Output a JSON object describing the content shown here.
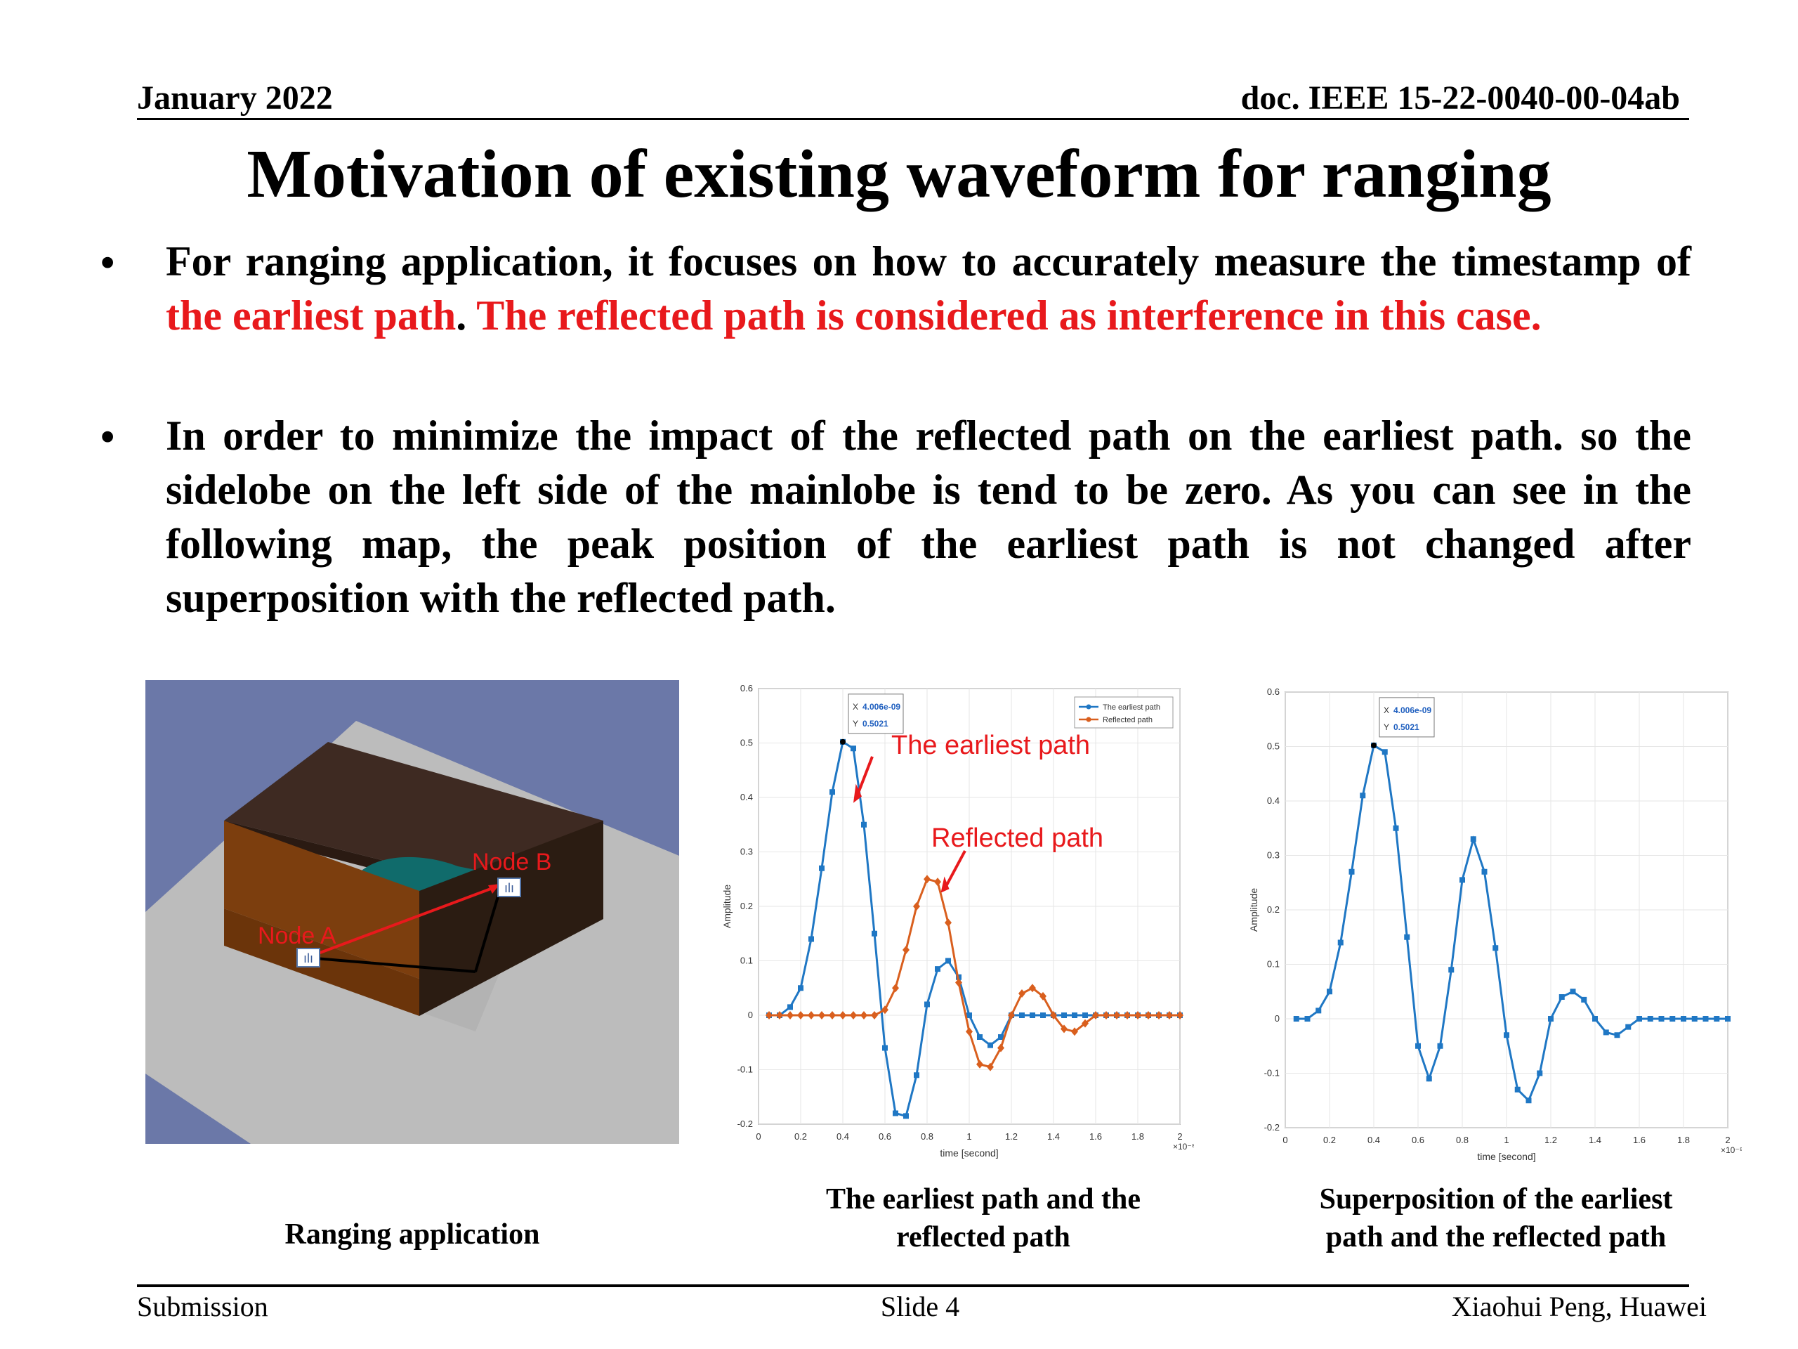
{
  "header": {
    "date": "January 2022",
    "doc": "doc. IEEE 15-22-0040-00-04ab"
  },
  "title": "Motivation of existing waveform for ranging",
  "bullets": {
    "b1_part1": "For ranging application, it focuses on how to accurately measure the timestamp of ",
    "b1_red1": "the earliest path",
    "b1_part2": ". ",
    "b1_red2": "The reflected path is considered as interference in this case.",
    "b2": "In order to minimize the impact of the reflected path on the earliest path. so the sidelobe on the left side of the mainlobe is tend to be zero. As you can see in the following map, the peak position of the earliest path is not changed after superposition with the reflected path.",
    "marker": "•"
  },
  "scene": {
    "node_a": "Node A",
    "node_b": "Node B"
  },
  "annotations": {
    "earliest": "The earliest path",
    "reflected": "Reflected path"
  },
  "colors": {
    "blue": "#1f77c4",
    "orange": "#d95f1e",
    "red": "#e8191c"
  },
  "chart_data": [
    {
      "type": "line",
      "xlabel": "time [second]",
      "ylabel": "Amplitude",
      "x_multiplier": "×10⁻⁸",
      "xlim": [
        0,
        2
      ],
      "ylim": [
        -0.2,
        0.6
      ],
      "xticks": [
        "0",
        "0.2",
        "0.4",
        "0.6",
        "0.8",
        "1",
        "1.2",
        "1.4",
        "1.6",
        "1.8",
        "2"
      ],
      "yticks": [
        "-0.2",
        "-0.1",
        "0",
        "0.1",
        "0.2",
        "0.3",
        "0.4",
        "0.5",
        "0.6"
      ],
      "grid": true,
      "legend": "top-right",
      "datatip": {
        "x_label": "X",
        "x_value": "4.006e-09",
        "y_label": "Y",
        "y_value": "0.5021"
      },
      "x": [
        0.05,
        0.1,
        0.15,
        0.2,
        0.25,
        0.3,
        0.35,
        0.4,
        0.45,
        0.5,
        0.55,
        0.6,
        0.65,
        0.7,
        0.75,
        0.8,
        0.85,
        0.9,
        0.95,
        1.0,
        1.05,
        1.1,
        1.15,
        1.2,
        1.25,
        1.3,
        1.35,
        1.4,
        1.45,
        1.5,
        1.55,
        1.6,
        1.65,
        1.7,
        1.75,
        1.8,
        1.85,
        1.9,
        1.95,
        2.0
      ],
      "series": [
        {
          "name": "The earliest path",
          "values": [
            0,
            0,
            0.015,
            0.05,
            0.14,
            0.27,
            0.41,
            0.5021,
            0.49,
            0.35,
            0.15,
            -0.06,
            -0.18,
            -0.185,
            -0.11,
            0.02,
            0.085,
            0.1,
            0.07,
            0,
            -0.04,
            -0.055,
            -0.04,
            0,
            0,
            0,
            0,
            0,
            0,
            0,
            0,
            0,
            0,
            0,
            0,
            0,
            0,
            0,
            0,
            0
          ]
        },
        {
          "name": "Reflected path",
          "values": [
            0,
            0,
            0,
            0,
            0,
            0,
            0,
            0,
            0,
            0,
            0,
            0.01,
            0.05,
            0.12,
            0.2,
            0.25,
            0.245,
            0.17,
            0.06,
            -0.03,
            -0.09,
            -0.095,
            -0.06,
            0,
            0.04,
            0.05,
            0.035,
            0,
            -0.025,
            -0.03,
            -0.015,
            0,
            0,
            0,
            0,
            0,
            0,
            0,
            0,
            0
          ]
        }
      ]
    },
    {
      "type": "line",
      "xlabel": "time [second]",
      "ylabel": "Amplitude",
      "x_multiplier": "×10⁻⁸",
      "xlim": [
        0,
        2
      ],
      "ylim": [
        -0.2,
        0.6
      ],
      "xticks": [
        "0",
        "0.2",
        "0.4",
        "0.6",
        "0.8",
        "1",
        "1.2",
        "1.4",
        "1.6",
        "1.8",
        "2"
      ],
      "yticks": [
        "-0.2",
        "-0.1",
        "0",
        "0.1",
        "0.2",
        "0.3",
        "0.4",
        "0.5",
        "0.6"
      ],
      "grid": true,
      "datatip": {
        "x_label": "X",
        "x_value": "4.006e-09",
        "y_label": "Y",
        "y_value": "0.5021"
      },
      "x": [
        0.05,
        0.1,
        0.15,
        0.2,
        0.25,
        0.3,
        0.35,
        0.4,
        0.45,
        0.5,
        0.55,
        0.6,
        0.65,
        0.7,
        0.75,
        0.8,
        0.85,
        0.9,
        0.95,
        1.0,
        1.05,
        1.1,
        1.15,
        1.2,
        1.25,
        1.3,
        1.35,
        1.4,
        1.45,
        1.5,
        1.55,
        1.6,
        1.65,
        1.7,
        1.75,
        1.8,
        1.85,
        1.9,
        1.95,
        2.0
      ],
      "series": [
        {
          "name": "",
          "values": [
            0,
            0,
            0.015,
            0.05,
            0.14,
            0.27,
            0.41,
            0.5021,
            0.49,
            0.35,
            0.15,
            -0.05,
            -0.11,
            -0.05,
            0.09,
            0.255,
            0.33,
            0.27,
            0.13,
            -0.03,
            -0.13,
            -0.15,
            -0.1,
            0,
            0.04,
            0.05,
            0.035,
            0,
            -0.025,
            -0.03,
            -0.015,
            0,
            0,
            0,
            0,
            0,
            0,
            0,
            0,
            0
          ]
        }
      ]
    }
  ],
  "captions": {
    "left": "Ranging application",
    "middle_l1": "The earliest path and the",
    "middle_l2": "reflected path",
    "right_l1": "Superposition of the earliest",
    "right_l2": "path and the reflected path"
  },
  "footer": {
    "left": "Submission",
    "center": "Slide 4",
    "right": "Xiaohui Peng, Huawei"
  }
}
